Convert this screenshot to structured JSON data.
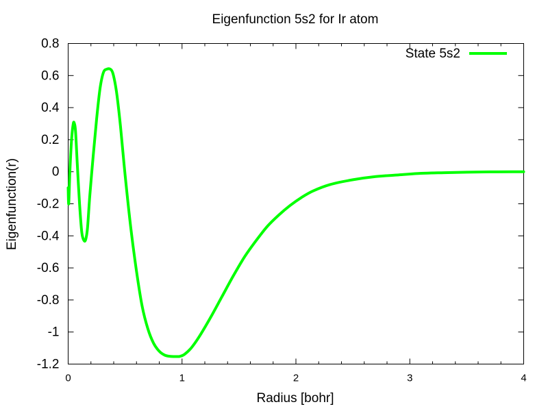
{
  "chart_data": {
    "type": "line",
    "title": "Eigenfunction 5s2 for Ir atom",
    "xlabel": "Radius [bohr]",
    "ylabel": "Eigenfunction(r)",
    "xlim": [
      0,
      4
    ],
    "ylim": [
      -1.2,
      0.8
    ],
    "xticks": [
      0,
      1,
      2,
      3,
      4
    ],
    "xtick_labels": [
      "0",
      "1",
      "2",
      "3",
      "4"
    ],
    "yticks": [
      -1.2,
      -1,
      -0.8,
      -0.6,
      -0.4,
      -0.2,
      0,
      0.2,
      0.4,
      0.6,
      0.8
    ],
    "ytick_labels": [
      "-1.2",
      "-1",
      "-0.8",
      "-0.6",
      "-0.4",
      "-0.2",
      "0",
      "0.2",
      "0.4",
      "0.6",
      "0.8"
    ],
    "grid": false,
    "legend": {
      "position": "top-right"
    },
    "series": [
      {
        "name": "State 5s2",
        "color": "#00ff00",
        "x": [
          0,
          0.005,
          0.015,
          0.03,
          0.045,
          0.055,
          0.065,
          0.08,
          0.1,
          0.12,
          0.14,
          0.155,
          0.17,
          0.19,
          0.22,
          0.25,
          0.28,
          0.31,
          0.34,
          0.37,
          0.39,
          0.41,
          0.43,
          0.46,
          0.5,
          0.55,
          0.6,
          0.65,
          0.7,
          0.75,
          0.8,
          0.85,
          0.9,
          0.95,
          0.98,
          1.02,
          1.08,
          1.15,
          1.25,
          1.35,
          1.45,
          1.55,
          1.65,
          1.75,
          1.85,
          1.95,
          2.05,
          2.15,
          2.3,
          2.5,
          2.7,
          2.9,
          3.1,
          3.3,
          3.5,
          3.7,
          3.9,
          4.0
        ],
        "y": [
          -0.1,
          -0.2,
          0.0,
          0.2,
          0.3,
          0.3,
          0.25,
          0.05,
          -0.2,
          -0.38,
          -0.43,
          -0.42,
          -0.35,
          -0.15,
          0.1,
          0.33,
          0.52,
          0.62,
          0.64,
          0.64,
          0.62,
          0.56,
          0.47,
          0.28,
          -0.02,
          -0.35,
          -0.62,
          -0.84,
          -0.98,
          -1.07,
          -1.12,
          -1.145,
          -1.152,
          -1.153,
          -1.152,
          -1.14,
          -1.1,
          -1.03,
          -0.91,
          -0.78,
          -0.65,
          -0.53,
          -0.43,
          -0.34,
          -0.27,
          -0.21,
          -0.16,
          -0.12,
          -0.08,
          -0.05,
          -0.03,
          -0.02,
          -0.01,
          -0.006,
          -0.003,
          -0.001,
          0.0,
          0.0
        ]
      }
    ]
  }
}
